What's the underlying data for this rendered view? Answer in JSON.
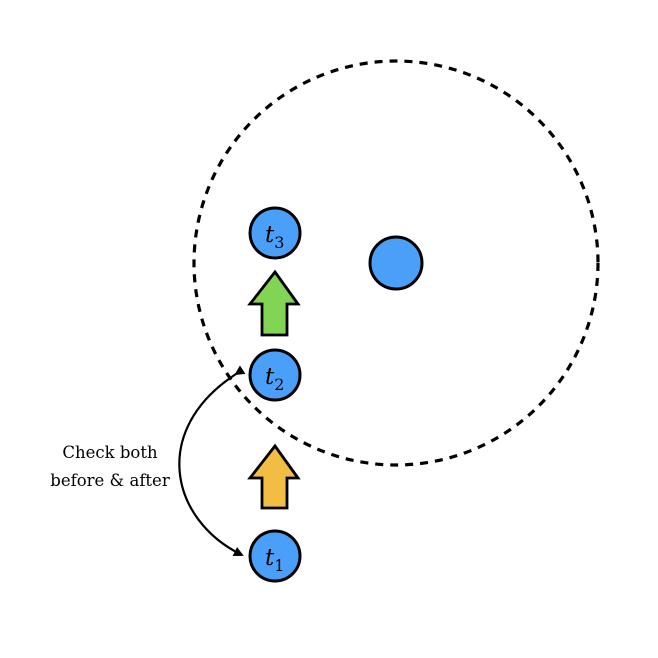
{
  "colors": {
    "node_fill": "#4a9ff8",
    "stroke": "#000000",
    "arrow_yellow": "#f2bd43",
    "arrow_green": "#82d455",
    "background": "#ffffff"
  },
  "nodes": [
    {
      "id": "t1",
      "base": "t",
      "sub": "1"
    },
    {
      "id": "t2",
      "base": "t",
      "sub": "2"
    },
    {
      "id": "t3",
      "base": "t",
      "sub": "3"
    }
  ],
  "annotation": {
    "line1": "Check both",
    "line2": "before & after"
  }
}
